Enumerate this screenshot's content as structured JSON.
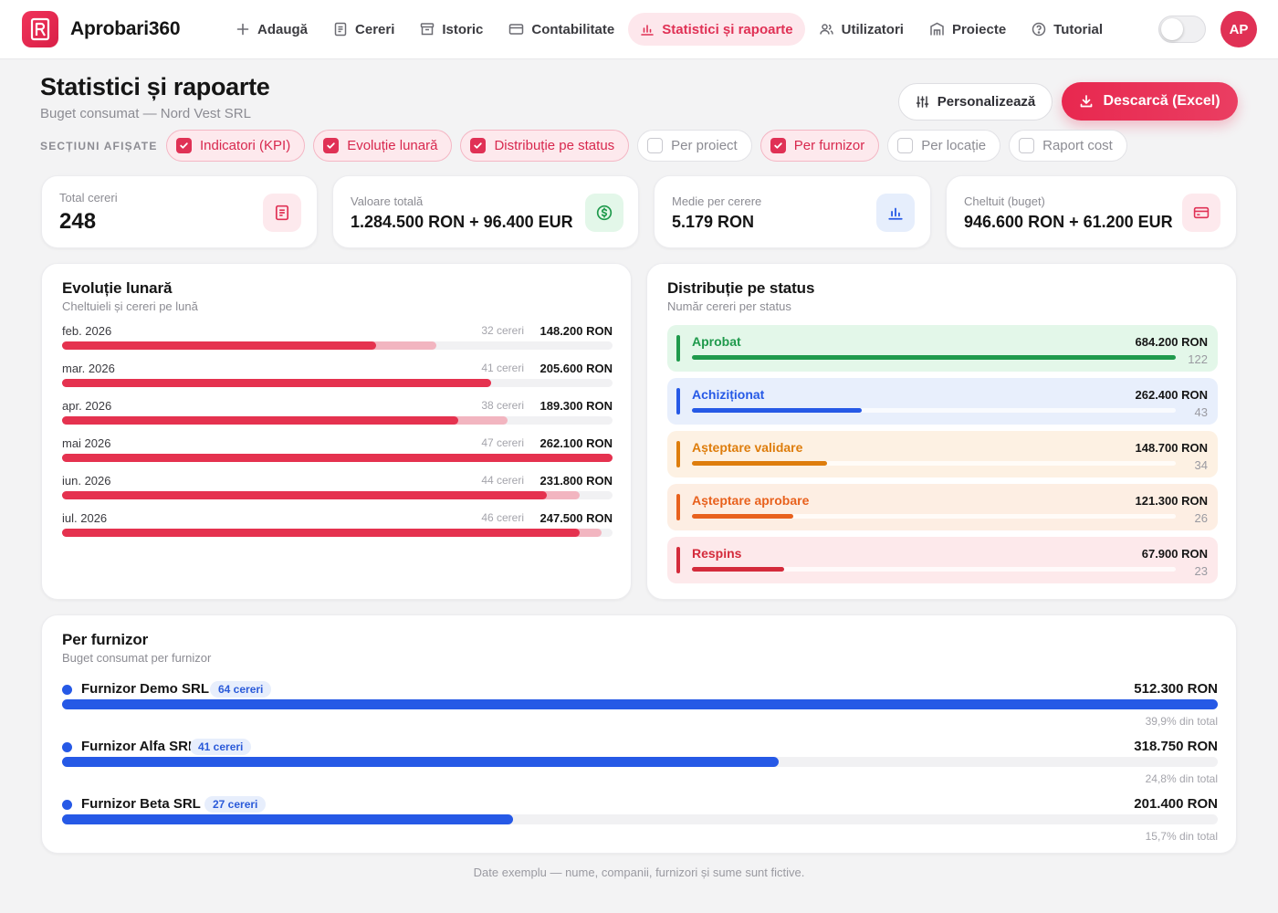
{
  "app": {
    "name": "Aprobari360",
    "avatar_initials": "AP",
    "accent_color": "#e03155"
  },
  "nav": [
    {
      "label": "Adaugă",
      "icon": "plus-icon",
      "active": false
    },
    {
      "label": "Cereri",
      "icon": "document-icon",
      "active": false
    },
    {
      "label": "Istoric",
      "icon": "archive-icon",
      "active": false
    },
    {
      "label": "Contabilitate",
      "icon": "credit-card-icon",
      "active": false
    },
    {
      "label": "Statistici și rapoarte",
      "icon": "bar-chart-icon",
      "active": true
    },
    {
      "label": "Utilizatori",
      "icon": "users-icon",
      "active": false
    },
    {
      "label": "Proiecte",
      "icon": "building-icon",
      "active": false
    },
    {
      "label": "Tutorial",
      "icon": "help-circle-icon",
      "active": false
    }
  ],
  "page": {
    "title": "Statistici și rapoarte",
    "subtitle": "Buget consumat — Nord Vest SRL",
    "customize_label": "Personalizează",
    "download_label": "Descarcă (Excel)",
    "sections_label": "SECȚIUNI AFIȘATE"
  },
  "sections": [
    {
      "label": "Indicatori (KPI)",
      "checked": true
    },
    {
      "label": "Evoluție lunară",
      "checked": true
    },
    {
      "label": "Distribuție pe status",
      "checked": true
    },
    {
      "label": "Per proiect",
      "checked": false
    },
    {
      "label": "Per furnizor",
      "checked": true
    },
    {
      "label": "Per locație",
      "checked": false
    },
    {
      "label": "Raport cost",
      "checked": false
    }
  ],
  "kpis": [
    {
      "label": "Total cereri",
      "value": "248",
      "icon": "document-icon",
      "icon_bg": "#fde9ed",
      "icon_color": "#e03155"
    },
    {
      "label": "Valoare totală",
      "value": "1.284.500 RON + 96.400 EUR",
      "icon": "dollar-circle-icon",
      "icon_bg": "#e3f7e9",
      "icon_color": "#1f9a4c"
    },
    {
      "label": "Medie per cerere",
      "value": "5.179 RON",
      "icon": "bar-chart-icon",
      "icon_bg": "#e6eefc",
      "icon_color": "#2659e6"
    },
    {
      "label": "Cheltuit (buget)",
      "value": "946.600 RON + 61.200 EUR",
      "icon": "credit-card-icon",
      "icon_bg": "#fde9ed",
      "icon_color": "#e03155"
    }
  ],
  "monthly": {
    "title": "Evoluție lunară",
    "subtitle": "Cheltuieli și cereri pe lună",
    "bar_color": "#e5324f",
    "secondary_color": "#f2b5c0",
    "rows": [
      {
        "month": "feb. 2026",
        "count_label": "32 cereri",
        "amount_label": "148.200 RON",
        "spent_fraction": 0.57,
        "requested_fraction": 0.68
      },
      {
        "month": "mar. 2026",
        "count_label": "41 cereri",
        "amount_label": "205.600 RON",
        "spent_fraction": 0.78,
        "requested_fraction": 0.78
      },
      {
        "month": "apr. 2026",
        "count_label": "38 cereri",
        "amount_label": "189.300 RON",
        "spent_fraction": 0.72,
        "requested_fraction": 0.81
      },
      {
        "month": "mai 2026",
        "count_label": "47 cereri",
        "amount_label": "262.100 RON",
        "spent_fraction": 1.0,
        "requested_fraction": 1.0
      },
      {
        "month": "iun. 2026",
        "count_label": "44 cereri",
        "amount_label": "231.800 RON",
        "spent_fraction": 0.88,
        "requested_fraction": 0.94
      },
      {
        "month": "iul. 2026",
        "count_label": "46 cereri",
        "amount_label": "247.500 RON",
        "spent_fraction": 0.94,
        "requested_fraction": 0.98
      }
    ]
  },
  "status": {
    "title": "Distribuție pe status",
    "subtitle": "Număr cereri per status",
    "rows": [
      {
        "label": "Aprobat",
        "amount_label": "684.200 RON",
        "count_label": "122",
        "fraction": 1.0,
        "color": "#1f9a4c",
        "bg": "#e3f7e9"
      },
      {
        "label": "Achiziționat",
        "amount_label": "262.400 RON",
        "count_label": "43",
        "fraction": 0.35,
        "color": "#2659e6",
        "bg": "#e8effc"
      },
      {
        "label": "Așteptare validare",
        "amount_label": "148.700 RON",
        "count_label": "34",
        "fraction": 0.28,
        "color": "#de7d0c",
        "bg": "#fdf1e3"
      },
      {
        "label": "Așteptare aprobare",
        "amount_label": "121.300 RON",
        "count_label": "26",
        "fraction": 0.21,
        "color": "#e8611d",
        "bg": "#fdeee3"
      },
      {
        "label": "Respins",
        "amount_label": "67.900 RON",
        "count_label": "23",
        "fraction": 0.19,
        "color": "#d42b3b",
        "bg": "#fde9eb"
      }
    ]
  },
  "suppliers": {
    "title": "Per furnizor",
    "subtitle": "Buget consumat per furnizor",
    "rows": [
      {
        "name": "Furnizor Demo SRL",
        "badge": "64 cereri",
        "amount_label": "512.300 RON",
        "share_label": "39,9% din total",
        "fraction": 1.0
      },
      {
        "name": "Furnizor Alfa SRL",
        "badge": "41 cereri",
        "amount_label": "318.750 RON",
        "share_label": "24,8% din total",
        "fraction": 0.62
      },
      {
        "name": "Furnizor Beta SRL",
        "badge": "27 cereri",
        "amount_label": "201.400 RON",
        "share_label": "15,7% din total",
        "fraction": 0.39
      }
    ]
  },
  "footer": "Date exemplu — nume, companii, furnizori și sume sunt fictive."
}
